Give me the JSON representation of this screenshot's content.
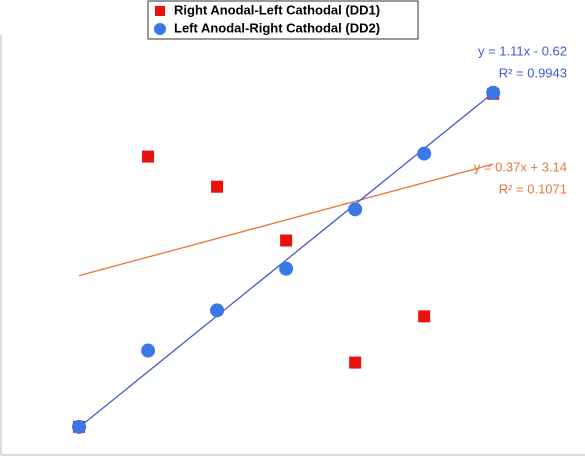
{
  "chart_data": {
    "type": "scatter",
    "xlim": [
      0,
      8.33
    ],
    "ylim": [
      0,
      8.3
    ],
    "grid": false,
    "legend": "top",
    "series": [
      {
        "name": "Right Anodal-Left Cathodal (DD1)",
        "color": "#e8120c",
        "marker": "square",
        "x": [
          1,
          2,
          3,
          4,
          5,
          6,
          7
        ],
        "values": [
          0.5,
          5.88,
          5.28,
          4.21,
          1.78,
          2.7,
          7.13
        ],
        "trendline": {
          "slope": 0.37,
          "intercept": 3.14,
          "color": "#e8743b",
          "label": "y = 0.37x + 3.14",
          "r2_label": "R² = 0.1071"
        }
      },
      {
        "name": "Left Anodal-Right Cathodal (DD2)",
        "color": "#3b78e7",
        "marker": "circle",
        "x": [
          1,
          2,
          3,
          4,
          5,
          6,
          7
        ],
        "values": [
          0.5,
          2.02,
          2.82,
          3.65,
          4.83,
          5.94,
          7.15
        ],
        "trendline": {
          "slope": 1.11,
          "intercept": -0.62,
          "color": "#3f5bd0",
          "label": "y = 1.11x - 0.62",
          "r2_label": "R² = 0.9943"
        }
      }
    ]
  }
}
